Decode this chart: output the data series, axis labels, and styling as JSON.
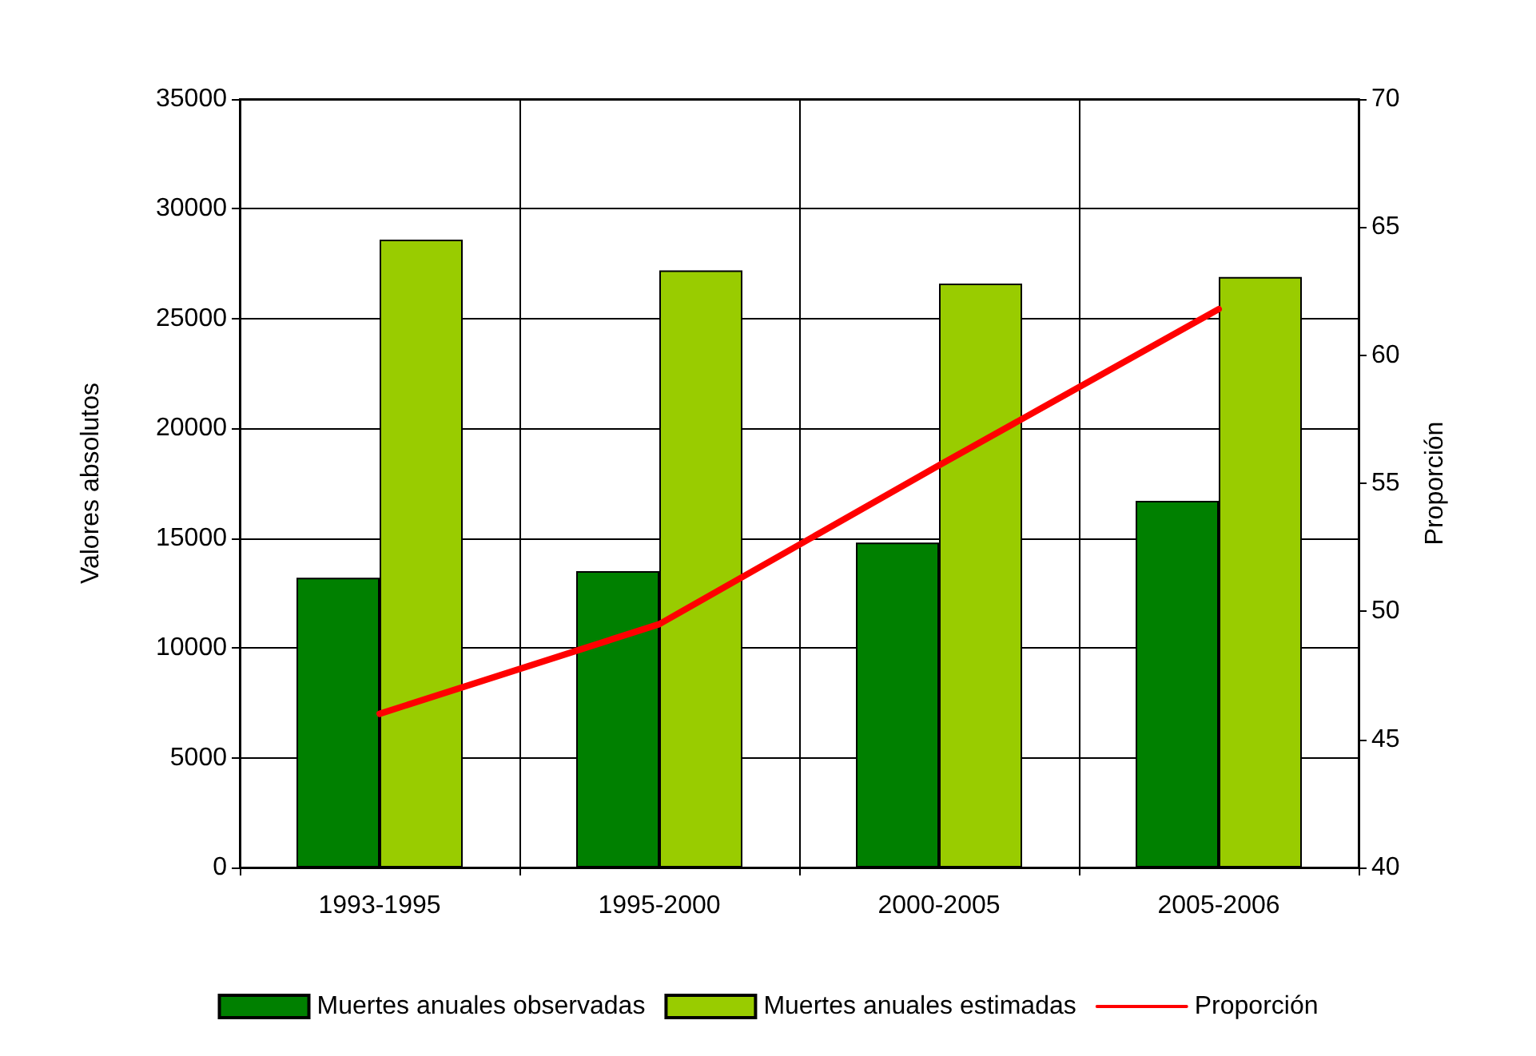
{
  "chart_data": {
    "type": "bar",
    "ylabel": "Valores absolutos",
    "y2label": "Proporción",
    "categories": [
      "1993-1995",
      "1995-2000",
      "2000-2005",
      "2005-2006"
    ],
    "series": [
      {
        "name": "Muertes anuales observadas",
        "color": "#008000",
        "values": [
          13200,
          13500,
          14800,
          16700
        ]
      },
      {
        "name": "Muertes anuales estimadas",
        "color": "#99cc00",
        "values": [
          28600,
          27200,
          26600,
          26900
        ]
      },
      {
        "name": "Proporción",
        "type": "line",
        "axis": "y2",
        "color": "#ff0000",
        "values": [
          46.0,
          49.5,
          55.7,
          61.8
        ]
      }
    ],
    "ylim": [
      0,
      35000
    ],
    "yticks": [
      0,
      5000,
      10000,
      15000,
      20000,
      25000,
      30000,
      35000
    ],
    "y2lim": [
      40,
      70
    ],
    "y2ticks": [
      40,
      45,
      50,
      55,
      60,
      65,
      70
    ],
    "grid": true,
    "legend": "bottom",
    "marker": "none"
  }
}
